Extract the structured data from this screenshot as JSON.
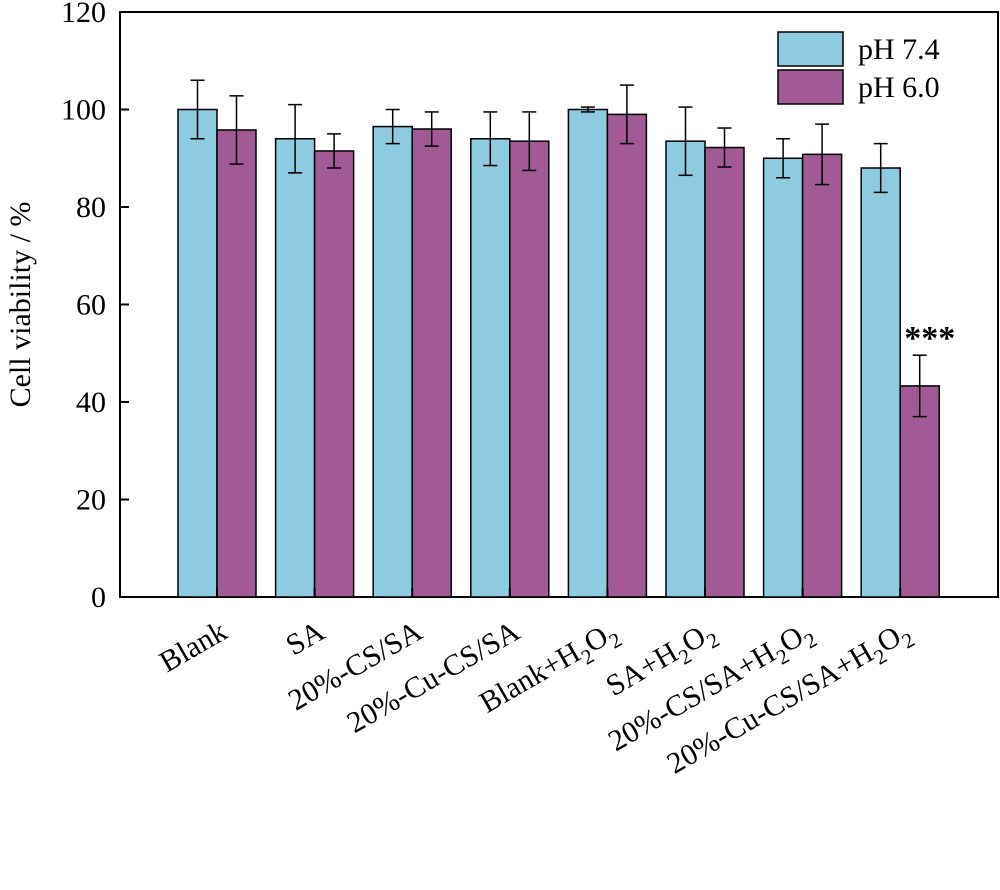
{
  "chart_data": {
    "type": "bar",
    "ylabel": "Cell viability / %",
    "xlabel": "",
    "ylim": [
      0,
      120
    ],
    "yticks": [
      0,
      20,
      40,
      60,
      80,
      100,
      120
    ],
    "grid": false,
    "legend_position": "top-right",
    "categories": [
      {
        "main": "Blank",
        "sub": "",
        "tail": ""
      },
      {
        "main": "SA",
        "sub": "",
        "tail": ""
      },
      {
        "main": "20%-CS/SA",
        "sub": "",
        "tail": ""
      },
      {
        "main": "20%-Cu-CS/SA",
        "sub": "",
        "tail": ""
      },
      {
        "main": "Blank+H",
        "sub": "2",
        "tail": "O",
        "sub2": "2"
      },
      {
        "main": "SA+H",
        "sub": "2",
        "tail": "O",
        "sub2": "2"
      },
      {
        "main": "20%-CS/SA+H",
        "sub": "2",
        "tail": "O",
        "sub2": "2"
      },
      {
        "main": "20%-Cu-CS/SA+H",
        "sub": "2",
        "tail": "O",
        "sub2": "2"
      }
    ],
    "series": [
      {
        "name": "pH 7.4",
        "color": "#8ecae0",
        "values": [
          100,
          94,
          96.5,
          94,
          100,
          93.5,
          90,
          88
        ],
        "errors": [
          6,
          7,
          3.5,
          5.5,
          0.5,
          7,
          4,
          5
        ]
      },
      {
        "name": "pH 6.0",
        "color": "#a25a96",
        "values": [
          95.8,
          91.5,
          96,
          93.5,
          99,
          92.2,
          90.8,
          43.3
        ],
        "errors": [
          7,
          3.5,
          3.5,
          6,
          6,
          4,
          6.2,
          6.3
        ]
      }
    ],
    "annotations": [
      {
        "text": "***",
        "category_index": 7,
        "series_index": 1
      }
    ]
  }
}
